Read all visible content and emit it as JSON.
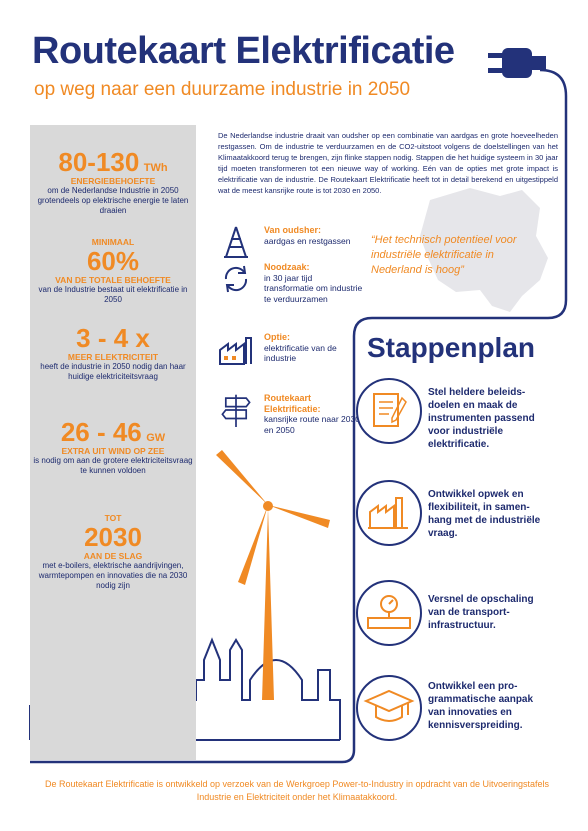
{
  "header": {
    "title": "Routekaart Elektrificatie",
    "subtitle": "op weg naar een duurzame industrie in 2050"
  },
  "stats": [
    {
      "value": "80-130",
      "unit": "TWh",
      "caption": "ENERGIEBEHOEFTE",
      "desc": "om de Nederlandse Industrie in 2050 grotendeels op elektrische energie te laten draaien"
    },
    {
      "pre": "MINIMAAL",
      "value": "60%",
      "caption": "VAN DE TOTALE BEHOEFTE",
      "desc": "van de Industrie bestaat uit elektrificatie in 2050"
    },
    {
      "value": "3 - 4 x",
      "caption": "MEER ELEKTRICITEIT",
      "desc": "heeft de industrie in 2050 nodig dan haar huidige elektriciteitsvraag"
    },
    {
      "value": "26 - 46",
      "unit": "GW",
      "caption": "EXTRA UIT WIND OP ZEE",
      "desc": "is nodig om aan de grotere elektriciteitsvraag te kunnen voldoen"
    },
    {
      "pre": "TOT",
      "value": "2030",
      "caption": "AAN DE SLAG",
      "desc": "met e-boilers, elektrische aandrijvingen, warmtepompen en innovaties die na 2030 nodig zijn"
    }
  ],
  "intro": "De Nederlandse industrie draait van oudsher op een combinatie van aardgas en grote hoeveelheden restgassen. Om de industrie te verduurzamen en de CO2-uitstoot volgens de doelstellingen van het Klimaatakkoord terug te brengen, zijn flinke stappen nodig. Stappen die het huidige systeem in 30 jaar tijd moeten transformeren tot een nieuwe way of working. Eén van de opties met grote impact is elektrificatie van de industrie. De Routekaart Elektrificatie heeft tot in detail berekend en uitgestippeld wat de meest kansrijke route is tot 2030 en 2050.",
  "features": [
    {
      "icon": "oil-derrick-icon",
      "label": "Van oudsher:",
      "text": "aardgas en restgassen"
    },
    {
      "icon": "cycle-arrows-icon",
      "label": "Noodzaak:",
      "text": "in 30 jaar tijd transformatie om industrie te verduurzamen"
    },
    {
      "icon": "factory-plug-icon",
      "label": "Optie:",
      "text": "elektrificatie van de industrie"
    },
    {
      "icon": "signpost-icon",
      "label": "Routekaart Elektrificatie:",
      "text": "kansrijke route naar 2030 en 2050"
    }
  ],
  "quote": "“Het technisch potentieel voor industriële elektrificatie in Nederland is hoog”",
  "stappenplan": {
    "title": "Stappenplan",
    "steps": [
      {
        "icon": "document-pencil-icon",
        "text": "Stel heldere beleids-doelen en maak de instrumenten passend voor industriële elektrificatie."
      },
      {
        "icon": "factory-icon",
        "text": "Ontwikkel opwek en flexibiliteit, in samen-hang met de industriële vraag."
      },
      {
        "icon": "pipe-gauge-icon",
        "text": "Versnel de opschaling van de transport-infrastructuur."
      },
      {
        "icon": "graduation-cap-icon",
        "text": "Ontwikkel een pro-grammatische aanpak van innovaties en kennisverspreiding."
      }
    ]
  },
  "footer": "De Routekaart Elektrificatie is ontwikkeld op verzoek van de Werkgroep Power-to-Industry in opdracht van de Uitvoeringstafels Industrie en Elektriciteit onder het Klimaatakkoord.",
  "colors": {
    "navy": "#23327a",
    "orange": "#f08a24",
    "grey": "#d9d9d9"
  }
}
